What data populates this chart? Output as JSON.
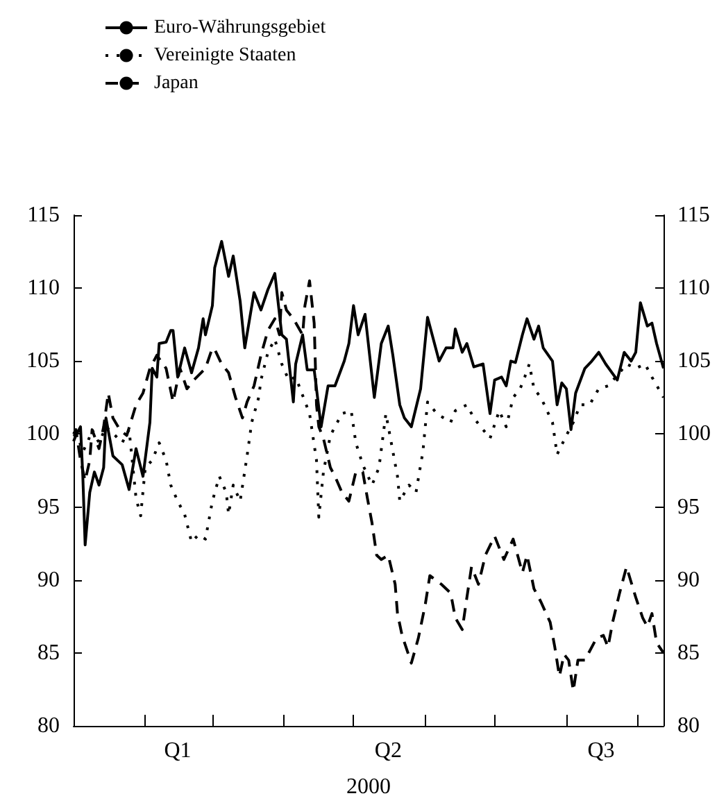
{
  "chart_data": {
    "type": "line",
    "xlabel": "2000",
    "legend": "top left",
    "marker": "none",
    "xlim": [
      "2000-01-01",
      "2000-09-12"
    ],
    "xticks": [
      {
        "value": "2000-02-01",
        "label": null
      },
      {
        "value": "2000-02-15",
        "label": "Q1"
      },
      {
        "value": "2000-03-01",
        "label": null
      },
      {
        "value": "2000-04-01",
        "label": null
      },
      {
        "value": "2000-05-01",
        "label": null
      },
      {
        "value": "2000-05-16",
        "label": "Q2"
      },
      {
        "value": "2000-06-01",
        "label": null
      },
      {
        "value": "2000-07-01",
        "label": null
      },
      {
        "value": "2000-08-01",
        "label": null
      },
      {
        "value": "2000-08-16",
        "label": "Q3"
      },
      {
        "value": "2000-09-01",
        "label": null
      }
    ],
    "ylim": [
      80,
      115
    ],
    "yticks": [
      80,
      85,
      90,
      95,
      100,
      105,
      110,
      115
    ],
    "y2lim": [
      80,
      115
    ],
    "y2ticks": [
      80,
      85,
      90,
      95,
      100,
      105,
      110,
      115
    ],
    "series": [
      {
        "name": "Euro-Währungsgebiet",
        "color": "#000000",
        "line_style": "solid",
        "x": [
          "2000-01-01",
          "2000-01-02",
          "2000-01-04",
          "2000-01-05",
          "2000-01-06",
          "2000-01-08",
          "2000-01-10",
          "2000-01-12",
          "2000-01-14",
          "2000-01-15",
          "2000-01-18",
          "2000-01-22",
          "2000-01-25",
          "2000-01-28",
          "2000-01-31",
          "2000-02-03",
          "2000-02-04",
          "2000-02-06",
          "2000-02-07",
          "2000-02-10",
          "2000-02-12",
          "2000-02-13",
          "2000-02-15",
          "2000-02-18",
          "2000-02-21",
          "2000-02-24",
          "2000-02-26",
          "2000-02-27",
          "2000-03-01",
          "2000-03-02",
          "2000-03-05",
          "2000-03-08",
          "2000-03-10",
          "2000-03-13",
          "2000-03-15",
          "2000-03-19",
          "2000-03-22",
          "2000-03-25",
          "2000-03-28",
          "2000-03-31",
          "2000-04-02",
          "2000-04-05",
          "2000-04-06",
          "2000-04-09",
          "2000-04-11",
          "2000-04-14",
          "2000-04-17",
          "2000-04-20",
          "2000-04-23",
          "2000-04-27",
          "2000-04-29",
          "2000-05-01",
          "2000-05-03",
          "2000-05-06",
          "2000-05-10",
          "2000-05-13",
          "2000-05-16",
          "2000-05-18",
          "2000-05-21",
          "2000-05-23",
          "2000-05-26",
          "2000-05-30",
          "2000-06-02",
          "2000-06-07",
          "2000-06-10",
          "2000-06-13",
          "2000-06-14",
          "2000-06-17",
          "2000-06-19",
          "2000-06-22",
          "2000-06-26",
          "2000-06-29",
          "2000-07-01",
          "2000-07-04",
          "2000-07-06",
          "2000-07-08",
          "2000-07-10",
          "2000-07-13",
          "2000-07-15",
          "2000-07-18",
          "2000-07-20",
          "2000-07-22",
          "2000-07-26",
          "2000-07-28",
          "2000-07-30",
          "2000-08-01",
          "2000-08-03",
          "2000-08-05",
          "2000-08-09",
          "2000-08-12",
          "2000-08-15",
          "2000-08-18",
          "2000-08-23",
          "2000-08-26",
          "2000-08-29",
          "2000-08-31",
          "2000-09-02",
          "2000-09-05",
          "2000-09-07",
          "2000-09-09",
          "2000-09-12"
        ],
        "values": [
          99.5,
          99.9,
          100.5,
          97.1,
          92.4,
          96,
          97.4,
          96.5,
          97.7,
          101.1,
          98.5,
          97.9,
          96.2,
          99,
          97.1,
          100.8,
          104.5,
          103.9,
          106.2,
          106.3,
          107.1,
          107.1,
          103.9,
          105.9,
          104.2,
          105.9,
          107.9,
          106.8,
          108.8,
          111.4,
          113.2,
          110.8,
          112.2,
          109.1,
          105.9,
          109.7,
          108.5,
          109.9,
          111,
          106.8,
          106.5,
          102.2,
          104.8,
          106.8,
          104.4,
          104.4,
          100.5,
          103.3,
          103.3,
          105,
          106.2,
          108.8,
          106.8,
          108.2,
          102.5,
          106.2,
          107.4,
          105.4,
          102,
          101.1,
          100.5,
          103.1,
          108,
          105,
          105.9,
          105.9,
          107.2,
          105.6,
          106.2,
          104.6,
          104.8,
          101.4,
          103.7,
          103.9,
          103.3,
          105,
          104.9,
          106.8,
          107.9,
          106.5,
          107.4,
          105.9,
          105,
          102,
          103.5,
          103.1,
          100.3,
          102.8,
          104.5,
          105,
          105.6,
          104.8,
          103.7,
          105.6,
          105,
          105.6,
          109,
          107.4,
          107.6,
          106.2,
          104.5
        ]
      },
      {
        "name": "Vereinigte Staaten",
        "color": "#000000",
        "line_style": "dotted",
        "x": [
          "2000-01-01",
          "2000-01-03",
          "2000-01-05",
          "2000-01-07",
          "2000-01-09",
          "2000-01-12",
          "2000-01-15",
          "2000-01-19",
          "2000-01-22",
          "2000-01-25",
          "2000-01-28",
          "2000-01-30",
          "2000-02-01",
          "2000-02-04",
          "2000-02-07",
          "2000-02-10",
          "2000-02-12",
          "2000-02-15",
          "2000-02-18",
          "2000-02-21",
          "2000-02-24",
          "2000-02-27",
          "2000-03-01",
          "2000-03-04",
          "2000-03-07",
          "2000-03-08",
          "2000-03-10",
          "2000-03-13",
          "2000-03-16",
          "2000-03-18",
          "2000-03-21",
          "2000-03-22",
          "2000-03-25",
          "2000-03-28",
          "2000-03-31",
          "2000-04-03",
          "2000-04-06",
          "2000-04-12",
          "2000-04-15",
          "2000-04-16",
          "2000-04-18",
          "2000-04-21",
          "2000-04-24",
          "2000-04-26",
          "2000-04-30",
          "2000-05-02",
          "2000-05-05",
          "2000-05-09",
          "2000-05-12",
          "2000-05-15",
          "2000-05-20",
          "2000-05-21",
          "2000-05-25",
          "2000-05-28",
          "2000-05-31",
          "2000-06-02",
          "2000-06-06",
          "2000-06-12",
          "2000-06-14",
          "2000-06-19",
          "2000-06-22",
          "2000-06-25",
          "2000-06-29",
          "2000-07-03",
          "2000-07-06",
          "2000-07-09",
          "2000-07-12",
          "2000-07-14",
          "2000-07-16",
          "2000-07-18",
          "2000-07-21",
          "2000-07-26",
          "2000-07-28",
          "2000-08-01",
          "2000-08-04",
          "2000-08-07",
          "2000-08-11",
          "2000-08-15",
          "2000-08-19",
          "2000-08-24",
          "2000-08-27",
          "2000-08-31",
          "2000-09-04",
          "2000-09-07",
          "2000-09-12"
        ],
        "values": [
          100,
          99.7,
          98.8,
          99.4,
          100.3,
          99.4,
          100.5,
          99.9,
          99.4,
          100.3,
          95.6,
          94.4,
          97.7,
          98.2,
          99.4,
          98.2,
          96.5,
          95.4,
          94.5,
          92.6,
          93.1,
          92.8,
          95.4,
          97.1,
          96,
          94.5,
          96.5,
          95.4,
          98.5,
          100.8,
          102.5,
          103.7,
          105.6,
          106.5,
          104.8,
          103.7,
          103.9,
          101.4,
          98.2,
          94.3,
          97.4,
          99.9,
          100.8,
          101.4,
          101.6,
          99.4,
          97.9,
          96.5,
          97.7,
          101.4,
          97.1,
          95.4,
          96.5,
          96,
          98.8,
          102.2,
          101.4,
          100.8,
          101.6,
          102,
          101.1,
          100.5,
          99.7,
          101.6,
          100.5,
          102.5,
          103.1,
          103.9,
          104.8,
          103.1,
          102.5,
          100.8,
          98.6,
          99.9,
          100.8,
          102,
          102,
          103.1,
          103.3,
          104.2,
          104.8,
          104.5,
          104.8,
          103.9,
          102.5
        ]
      },
      {
        "name": "Japan",
        "color": "#000000",
        "line_style": "dashed",
        "x": [
          "2000-01-01",
          "2000-01-02",
          "2000-01-04",
          "2000-01-06",
          "2000-01-08",
          "2000-01-09",
          "2000-01-12",
          "2000-01-14",
          "2000-01-16",
          "2000-01-18",
          "2000-01-21",
          "2000-01-24",
          "2000-01-28",
          "2000-01-31",
          "2000-02-03",
          "2000-02-06",
          "2000-02-10",
          "2000-02-13",
          "2000-02-16",
          "2000-02-19",
          "2000-02-22",
          "2000-02-27",
          "2000-03-01",
          "2000-03-02",
          "2000-03-05",
          "2000-03-08",
          "2000-03-11",
          "2000-03-14",
          "2000-03-16",
          "2000-03-19",
          "2000-03-22",
          "2000-03-25",
          "2000-03-28",
          "2000-03-30",
          "2000-03-31",
          "2000-04-02",
          "2000-04-05",
          "2000-04-09",
          "2000-04-10",
          "2000-04-12",
          "2000-04-14",
          "2000-04-15",
          "2000-04-16",
          "2000-04-18",
          "2000-04-21",
          "2000-04-23",
          "2000-04-26",
          "2000-04-29",
          "2000-05-02",
          "2000-05-05",
          "2000-05-07",
          "2000-05-09",
          "2000-05-11",
          "2000-05-13",
          "2000-05-16",
          "2000-05-19",
          "2000-05-20",
          "2000-05-22",
          "2000-05-26",
          "2000-05-29",
          "2000-06-01",
          "2000-06-03",
          "2000-06-08",
          "2000-06-12",
          "2000-06-14",
          "2000-06-17",
          "2000-06-19",
          "2000-06-21",
          "2000-06-24",
          "2000-06-27",
          "2000-07-01",
          "2000-07-05",
          "2000-07-09",
          "2000-07-13",
          "2000-07-15",
          "2000-07-18",
          "2000-07-21",
          "2000-07-25",
          "2000-07-27",
          "2000-07-29",
          "2000-07-31",
          "2000-08-02",
          "2000-08-04",
          "2000-08-06",
          "2000-08-09",
          "2000-08-14",
          "2000-08-17",
          "2000-08-19",
          "2000-08-21",
          "2000-08-24",
          "2000-08-27",
          "2000-08-31",
          "2000-09-03",
          "2000-09-05",
          "2000-09-07",
          "2000-09-09",
          "2000-09-12"
        ],
        "values": [
          100,
          100.3,
          98.2,
          96.8,
          98.2,
          100.3,
          99,
          100.5,
          102.8,
          101.1,
          100.3,
          99.9,
          102,
          102.8,
          104.5,
          105.4,
          104.5,
          102.2,
          104.5,
          103.1,
          103.7,
          104.5,
          105.9,
          105.8,
          104.8,
          104.2,
          102.5,
          101.1,
          102.2,
          103.3,
          105.4,
          107.1,
          107.9,
          106.8,
          109.7,
          108.5,
          107.9,
          106.8,
          108.8,
          110.5,
          107.6,
          102,
          100.5,
          99.7,
          97.7,
          97.1,
          96,
          95.4,
          97.4,
          97.4,
          95.6,
          93.9,
          91.7,
          91.4,
          91.7,
          89.7,
          87.7,
          86.2,
          84.3,
          86,
          88.3,
          90.3,
          89.7,
          89.1,
          87.4,
          86.6,
          88.8,
          90.9,
          89.7,
          91.7,
          93,
          91.4,
          92.8,
          90.5,
          91.7,
          89.4,
          88.5,
          87.1,
          85.4,
          83.4,
          84.9,
          84.5,
          82.4,
          84.5,
          84.5,
          86,
          86.2,
          85.4,
          87.1,
          89.1,
          90.9,
          88.8,
          87.4,
          86.8,
          87.7,
          85.7,
          85
        ]
      }
    ]
  }
}
